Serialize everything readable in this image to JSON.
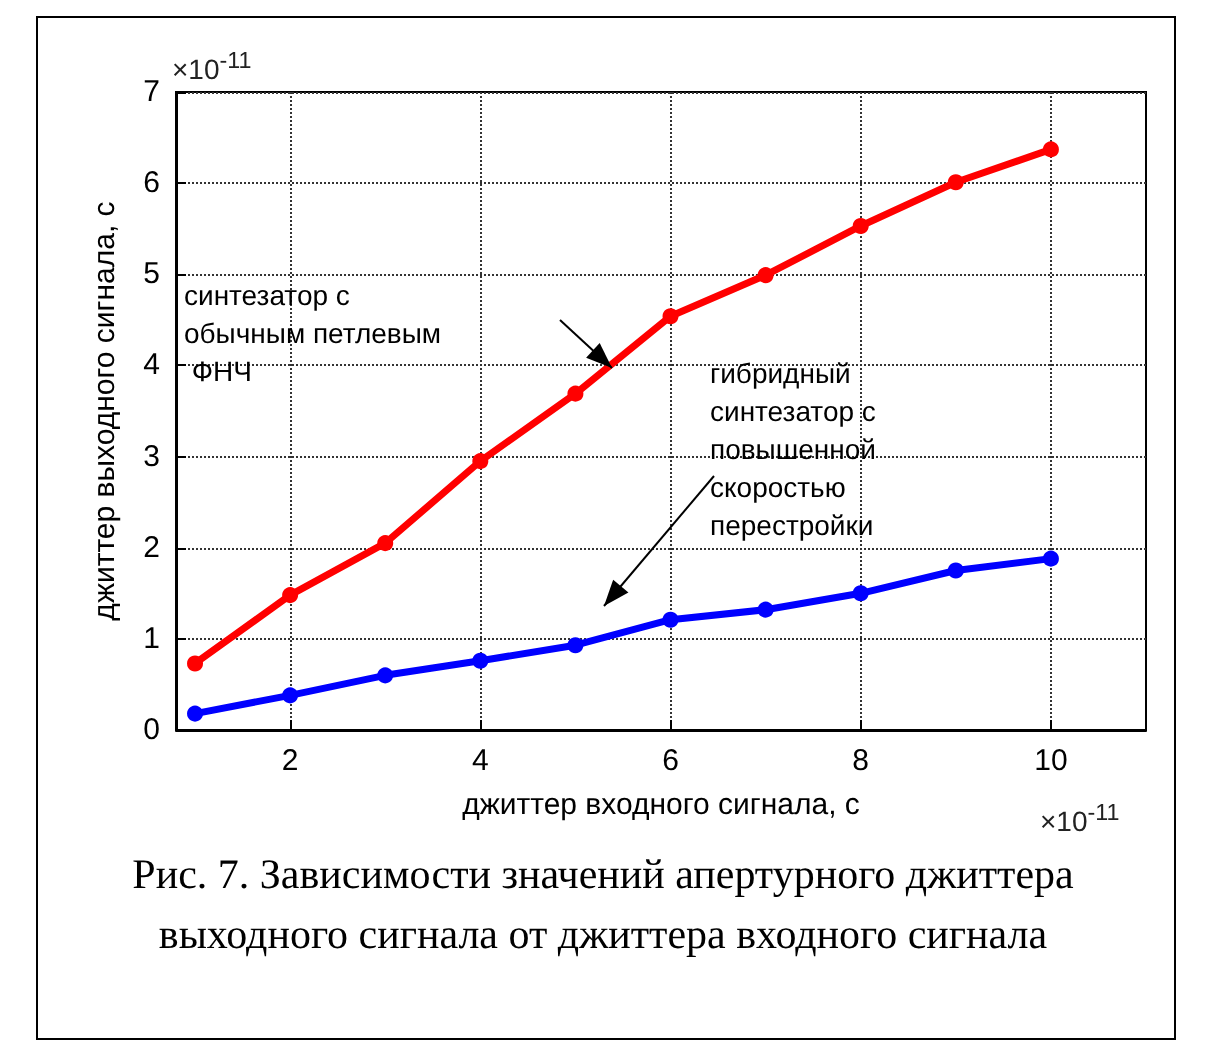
{
  "chart_data": {
    "type": "line",
    "title": "Рис. 7. Зависимости значений апертурного джиттера выходного сигнала от джиттера входного сигнала",
    "xlabel": "джиттер входного сигнала, с",
    "ylabel": "джиттер выходного сигнала, с",
    "x": [
      1,
      2,
      3,
      4,
      5,
      6,
      7,
      8,
      9,
      10
    ],
    "series": [
      {
        "name": "синтезатор с обычным петлевым ФНЧ",
        "color": "#ff0000",
        "values": [
          0.73,
          1.48,
          2.05,
          2.95,
          3.69,
          4.54,
          4.99,
          5.53,
          6.01,
          6.37
        ]
      },
      {
        "name": "гибридный синтезатор с повышенной скоростью перестройки",
        "color": "#0000ff",
        "values": [
          0.18,
          0.38,
          0.6,
          0.76,
          0.93,
          1.21,
          1.32,
          1.5,
          1.75,
          1.88
        ]
      }
    ],
    "xlim": [
      0.8,
      11
    ],
    "xticks": [
      2,
      4,
      6,
      8,
      10
    ],
    "ylim": [
      0,
      7
    ],
    "yticks": [
      0,
      1,
      2,
      3,
      4,
      5,
      6,
      7
    ],
    "annotations": [
      "×10$^{-11}$",
      "×10$^{-11}$"
    ],
    "grid": true,
    "legend": false,
    "marker": "circle",
    "line_style": "solid"
  }
}
